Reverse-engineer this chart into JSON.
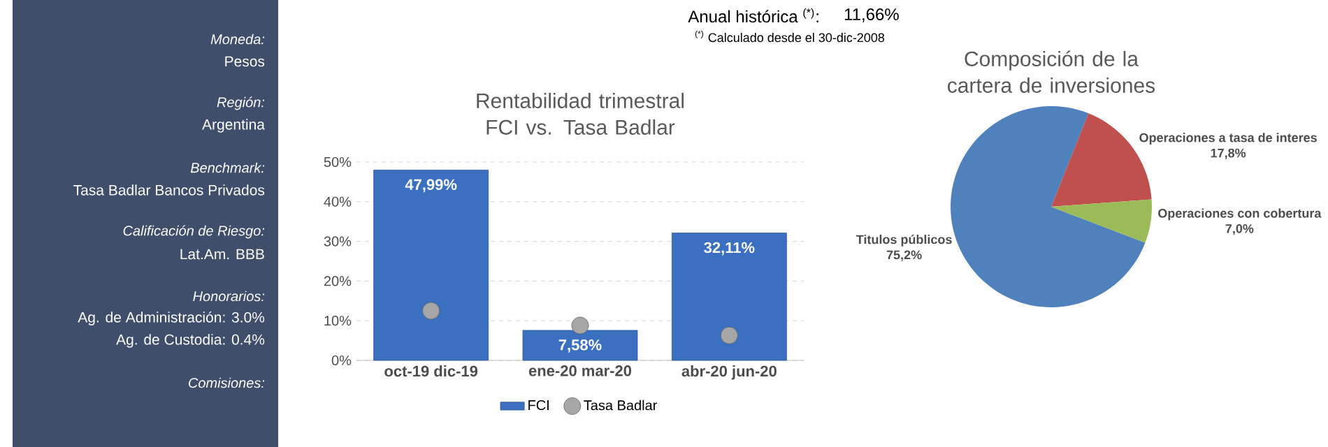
{
  "chart_data": [
    {
      "type": "other",
      "title": "Moneda:",
      "annotations": [
        "Pesos"
      ]
    },
    {
      "type": "other",
      "title": "Región:",
      "annotations": [
        "Argentina"
      ]
    },
    {
      "type": "other",
      "title": "Benchmark:",
      "annotations": [
        "Tasa Badlar Bancos Privados"
      ]
    },
    {
      "type": "other",
      "title": "Calificación de Riesgo:",
      "annotations": [
        "Lat.Am. BBB"
      ]
    },
    {
      "type": "other",
      "title": "Honorarios:",
      "annotations": [
        "Ag. de Administración: 3.0%",
        "Ag. de Custodia: 0.4%"
      ]
    },
    {
      "type": "other",
      "title": "Comisiones:"
    },
    {
      "type": "other",
      "annotations": [
        "Anual histórica $^{(*)}$:",
        "11,66%",
        "$^{(*)}$ Calculado desde el 30-dic-2008"
      ]
    },
    {
      "type": "bar",
      "title": "Rentabilidad trimestral FCI vs. Tasa Badlar",
      "categories": [
        "oct-19 dic-19",
        "ene-20 mar-20",
        "abr-20 jun-20"
      ],
      "series": [
        {
          "name": "FCI",
          "color": "#3a70bf",
          "values": [
            47.99,
            7.58,
            32.11
          ],
          "value_labels": [
            "47,99%",
            "7,58%",
            "32,11%"
          ]
        },
        {
          "name": "Tasa Badlar",
          "type": "scatter",
          "marker": "circle",
          "color": "#a6a6a6",
          "values": [
            12.5,
            8.8,
            6.3
          ]
        }
      ],
      "ylim": [
        0,
        50
      ],
      "yticks": [
        {
          "value": 0,
          "label": "0%"
        },
        {
          "value": 10,
          "label": "10%"
        },
        {
          "value": 20,
          "label": "20%"
        },
        {
          "value": 30,
          "label": "30%"
        },
        {
          "value": 40,
          "label": "40%"
        },
        {
          "value": 50,
          "label": "50%"
        }
      ],
      "grid": "y",
      "legend": "bottom"
    },
    {
      "type": "pie",
      "title": "Composición de la cartera de inversiones",
      "categories": [
        "Titulos públicos",
        "Operaciones a tasa de interes",
        "Operaciones con cobertura"
      ],
      "values": [
        75.2,
        17.8,
        7.0
      ],
      "value_labels": [
        "75,2%",
        "17,8%",
        "7,0%"
      ],
      "colors": [
        "#4f81bd",
        "#c0504d",
        "#9bbb59"
      ]
    }
  ]
}
